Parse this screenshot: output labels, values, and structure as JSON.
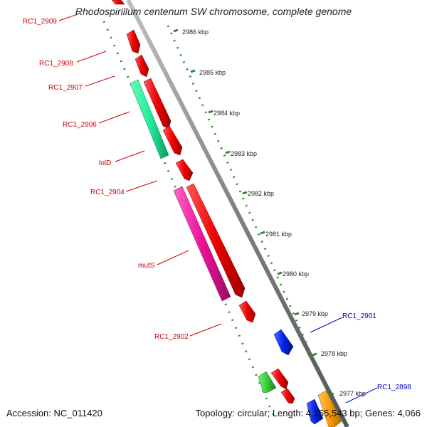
{
  "title": "Rhodospirillum centenum SW chromosome, complete genome",
  "footer": {
    "accession": "Accession: NC_011420",
    "topology": "Topology: circular; Length: 4,355,543 bp; Genes: 4,066"
  },
  "colors": {
    "backbone": "#808080",
    "ruler_ticks": "#2e8b2e",
    "gene_label_forward": "#cc0000",
    "gene_label_reverse": "#0000cc",
    "cds_red": "#ee0000",
    "cds_green_teal": "#22ee99",
    "cds_magenta": "#ee1199",
    "cds_green": "#33cc33",
    "cds_blue": "#0022ee",
    "cds_orange": "#ff9900"
  },
  "ruler_labels": [
    "2986 kbp",
    "2985 kbp",
    "2984 kbp",
    "2983 kbp",
    "2982 kbp",
    "2981 kbp",
    "2980 kbp",
    "2979 kbp",
    "2978 kbp",
    "2977 kbp"
  ],
  "gene_labels_left": [
    "RC1_2909",
    "RC1_2908",
    "RC1_2907",
    "RC1_2906",
    "lolD",
    "RC1_2904",
    "mutS",
    "RC1_2902"
  ],
  "gene_labels_right": [
    "RC1_2901",
    "RC1_2898"
  ]
}
